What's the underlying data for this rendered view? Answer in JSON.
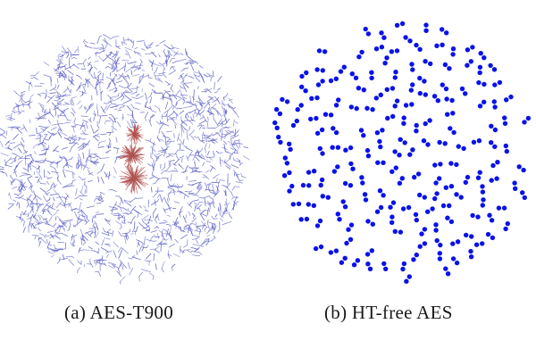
{
  "figure": {
    "panels": [
      {
        "caption": "(a) AES-T900",
        "graph": "netlist graph with dense trojan cluster near centre"
      },
      {
        "caption": "(b) HT-free AES",
        "graph": "netlist graph without trojan cluster"
      }
    ],
    "colors": {
      "edges": "#5a5fc4",
      "nodes": "#0a12e8",
      "trojan_cluster": "#b0504f",
      "background": "#ffffff",
      "caption_text": "#1a1a1a"
    }
  }
}
